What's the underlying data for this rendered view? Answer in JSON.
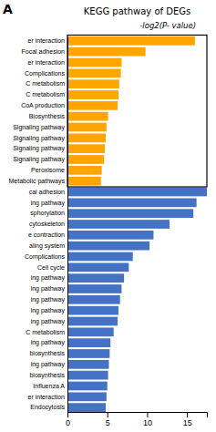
{
  "chart_data": {
    "type": "bar",
    "orientation": "horizontal",
    "title": "KEGG pathway of DEGs",
    "subtitle": "-log2(P- value)",
    "annotations": [
      "A"
    ],
    "categories": [
      "Endocytosis",
      "er interaction",
      "Influenza A",
      "biosynthesis",
      "ing pathway",
      "biosynthesis",
      "ing pathway",
      "C metabolism",
      "ing pathway",
      "ing pathway",
      "ing pathway",
      "ing pathway",
      "ing pathway",
      "Cell cycle",
      "Complications",
      "aling system",
      "e contraction",
      "cytoskeleton",
      "sphorylation",
      "ing pathway",
      "cal adhesion",
      "Metabolic pathways",
      "Peroxisome",
      "Signaling pathway",
      "Signaling pathway",
      "Signaling pathway",
      "Signaling pathway",
      "Biosynthesis",
      "CoA production",
      "C metabolism",
      "C metabolism",
      "Complications",
      "er interaction",
      "Focal adhesion",
      "er interaction"
    ],
    "values": [
      4.8,
      4.9,
      5.0,
      5.1,
      5.2,
      5.3,
      5.4,
      5.8,
      6.3,
      6.4,
      6.6,
      6.8,
      7.1,
      7.7,
      8.2,
      10.3,
      10.8,
      12.8,
      15.8,
      16.2,
      17.5,
      4.2,
      4.3,
      4.6,
      4.7,
      4.8,
      4.9,
      5.1,
      6.3,
      6.4,
      6.5,
      6.7,
      6.8,
      9.8,
      16.0
    ],
    "colors": [
      "#4472C4",
      "#4472C4",
      "#4472C4",
      "#4472C4",
      "#4472C4",
      "#4472C4",
      "#4472C4",
      "#4472C4",
      "#4472C4",
      "#4472C4",
      "#4472C4",
      "#4472C4",
      "#4472C4",
      "#4472C4",
      "#4472C4",
      "#4472C4",
      "#4472C4",
      "#4472C4",
      "#4472C4",
      "#4472C4",
      "#4472C4",
      "#FFA500",
      "#FFA500",
      "#FFA500",
      "#FFA500",
      "#FFA500",
      "#FFA500",
      "#FFA500",
      "#FFA500",
      "#FFA500",
      "#FFA500",
      "#FFA500",
      "#FFA500",
      "#FFA500",
      "#FFA500"
    ],
    "xlim": [
      0,
      17.5
    ],
    "xticks": [
      0,
      5,
      10,
      15
    ],
    "grid": false
  }
}
